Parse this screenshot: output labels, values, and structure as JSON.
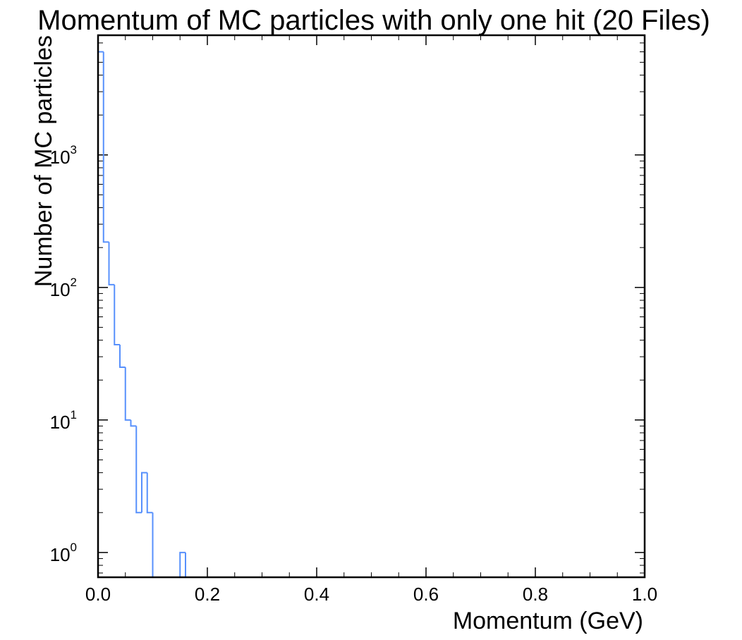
{
  "chart_data": {
    "type": "histogram-step",
    "title": "Momentum of MC particles with only one hit (20 Files)",
    "xlabel": "Momentum (GeV)",
    "ylabel": "Number of MC particles",
    "xlim": [
      0,
      1
    ],
    "ylim": [
      0.65,
      8000
    ],
    "yscale": "log",
    "grid": false,
    "line_color": "#5790fc",
    "x_ticks": [
      "0.0",
      "0.2",
      "0.4",
      "0.6",
      "0.8",
      "1.0"
    ],
    "y_ticks": [
      {
        "base": "10",
        "exp": "0",
        "value": 1
      },
      {
        "base": "10",
        "exp": "1",
        "value": 10
      },
      {
        "base": "10",
        "exp": "2",
        "value": 100
      },
      {
        "base": "10",
        "exp": "3",
        "value": 1000
      }
    ],
    "bin_width": 0.01,
    "bins": [
      {
        "x0": 0.0,
        "count": 6000
      },
      {
        "x0": 0.01,
        "count": 220
      },
      {
        "x0": 0.02,
        "count": 105
      },
      {
        "x0": 0.03,
        "count": 37
      },
      {
        "x0": 0.04,
        "count": 25
      },
      {
        "x0": 0.05,
        "count": 10
      },
      {
        "x0": 0.06,
        "count": 9
      },
      {
        "x0": 0.07,
        "count": 2
      },
      {
        "x0": 0.08,
        "count": 4
      },
      {
        "x0": 0.09,
        "count": 2
      },
      {
        "x0": 0.1,
        "count": 0
      },
      {
        "x0": 0.11,
        "count": 0
      },
      {
        "x0": 0.12,
        "count": 0
      },
      {
        "x0": 0.13,
        "count": 0
      },
      {
        "x0": 0.14,
        "count": 0
      },
      {
        "x0": 0.15,
        "count": 1
      },
      {
        "x0": 0.16,
        "count": 0
      }
    ]
  }
}
